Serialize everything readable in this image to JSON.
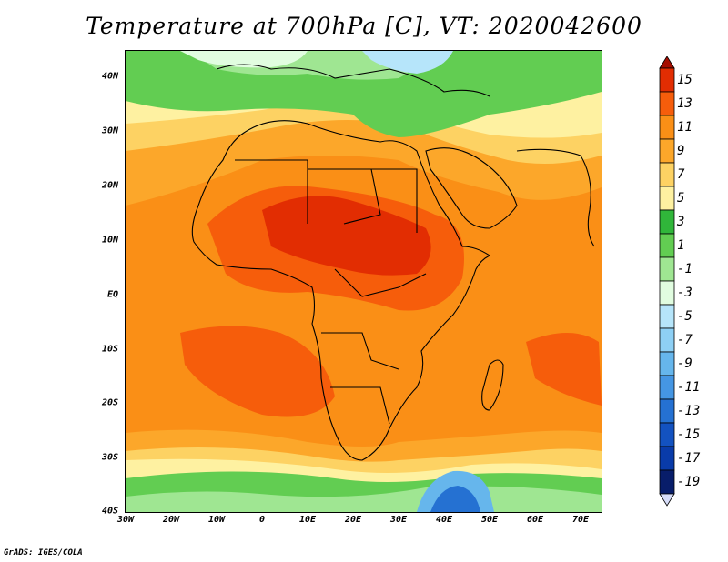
{
  "title": "Temperature at 700hPa [C], VT: 2020042600",
  "footer": "GrADS: IGES/COLA",
  "map": {
    "projection": "latlon",
    "lon_range": [
      -30,
      75
    ],
    "lat_range": [
      -40,
      45
    ],
    "lat_labels": [
      "40N",
      "30N",
      "20N",
      "10N",
      "EQ",
      "10S",
      "20S",
      "30S",
      "40S"
    ],
    "lon_labels": [
      "30W",
      "20W",
      "10W",
      "0",
      "10E",
      "20E",
      "30E",
      "40E",
      "50E",
      "60E",
      "70E"
    ]
  },
  "colorbar": {
    "labels": [
      "15",
      "13",
      "11",
      "9",
      "7",
      "5",
      "3",
      "1",
      "-1",
      "-3",
      "-5",
      "-7",
      "-9",
      "-11",
      "-13",
      "-15",
      "-17",
      "-19"
    ],
    "colors": [
      "#a50d00",
      "#e22d02",
      "#f65d0b",
      "#fa8f16",
      "#fca72a",
      "#fdd263",
      "#fef1a1",
      "#30b63a",
      "#62cd52",
      "#9fe692",
      "#e1fde0",
      "#b6e5fa",
      "#8ed0f5",
      "#66b6ec",
      "#4596e3",
      "#2571d2",
      "#1352c0",
      "#093ba9",
      "#081d6a",
      "#d7ddf9"
    ]
  }
}
